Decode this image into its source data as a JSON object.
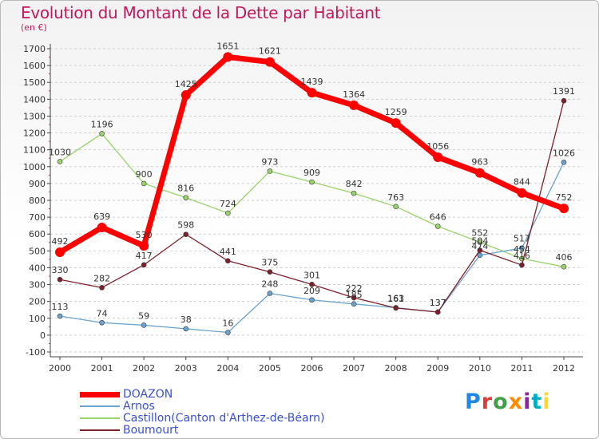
{
  "title": "Evolution du Montant de la Dette par Habitant",
  "subtitle": "(en €)",
  "brand": {
    "text": "Proxiti",
    "letters": [
      {
        "ch": "P",
        "color": "#1e88e5"
      },
      {
        "ch": "r",
        "color": "#e53935"
      },
      {
        "ch": "o",
        "color": "#43a047"
      },
      {
        "ch": "x",
        "color": "#fb8c00"
      },
      {
        "ch": "i",
        "color": "#8e24aa"
      },
      {
        "ch": "t",
        "color": "#00acc1"
      },
      {
        "ch": "i",
        "color": "#fdd835"
      }
    ]
  },
  "chart_data": {
    "type": "line",
    "title": "Evolution du Montant de la Dette par Habitant",
    "ylabel": "(en €)",
    "x": [
      "2000",
      "2001",
      "2002",
      "2003",
      "2004",
      "2005",
      "2006",
      "2007",
      "2008",
      "2009",
      "2010",
      "2011",
      "2012"
    ],
    "ylim": [
      -100,
      1700
    ],
    "yticks": [
      -100,
      0,
      100,
      200,
      300,
      400,
      500,
      600,
      700,
      800,
      900,
      1000,
      1100,
      1200,
      1300,
      1400,
      1500,
      1600,
      1700
    ],
    "grid": "horizontal-dashed",
    "legend_position": "bottom-left",
    "series": [
      {
        "name": "DOAZON",
        "color": "#ff0000",
        "width": 7,
        "marker": 6,
        "values": [
          492,
          639,
          530,
          1425,
          1651,
          1621,
          1439,
          1364,
          1259,
          1056,
          963,
          844,
          752
        ]
      },
      {
        "name": "Arnos",
        "color": "#6aa3d0",
        "width": 1.3,
        "marker": 3,
        "values": [
          113,
          74,
          59,
          38,
          16,
          248,
          209,
          185,
          163,
          137,
          474,
          517,
          1026
        ]
      },
      {
        "name": "Castillon(Canton d'Arthez-de-Béarn)",
        "color": "#99d46a",
        "width": 1.3,
        "marker": 3,
        "values": [
          1030,
          1196,
          900,
          816,
          724,
          973,
          909,
          842,
          763,
          646,
          552,
          454,
          406
        ]
      },
      {
        "name": "Boumourt",
        "color": "#7f1f2b",
        "width": 1.3,
        "marker": 3,
        "values": [
          330,
          282,
          417,
          598,
          441,
          375,
          301,
          222,
          161,
          137,
          504,
          416,
          1391
        ]
      }
    ]
  }
}
